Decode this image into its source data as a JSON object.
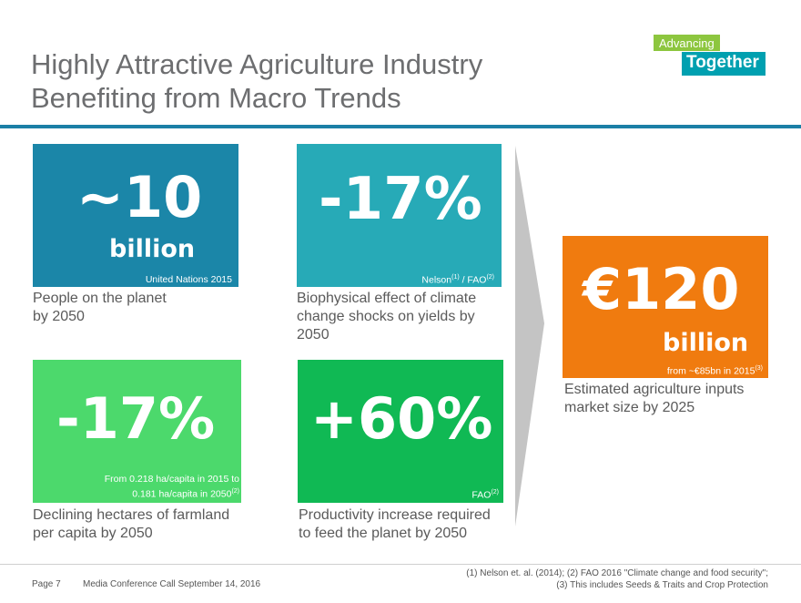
{
  "header": {
    "title_line1": "Highly Attractive Agriculture Industry",
    "title_line2": "Benefiting from Macro Trends"
  },
  "logo": {
    "line1": "Advancing",
    "line2": "Together"
  },
  "colors": {
    "rule": "#1b7fa6",
    "tile_population": "#1b86a8",
    "tile_climate": "#27aab7",
    "tile_farmland": "#4cd96c",
    "tile_productivity": "#10b954",
    "tile_market": "#f07b0f",
    "chevron": "#c4c4c4"
  },
  "tiles": {
    "population": {
      "value": "~10",
      "unit": "billion",
      "source": "United Nations 2015",
      "caption": [
        "People on the planet",
        "by 2050"
      ]
    },
    "climate": {
      "value": "-17%",
      "source": "Nelson",
      "source_sup1": "(1)",
      "source_mid": " / FAO",
      "source_sup2": "(2)",
      "caption": [
        "Biophysical effect of climate",
        "change shocks on yields by",
        "2050"
      ]
    },
    "farmland": {
      "value": "-17%",
      "source_line1": "From 0.218 ha/capita in 2015 to",
      "source_line2": "0.181 ha/capita in 2050",
      "source_sup": "(2)",
      "caption": [
        "Declining hectares of farmland",
        "per capita by 2050"
      ]
    },
    "productivity": {
      "value": "+60%",
      "source": "FAO",
      "source_sup": "(2)",
      "caption": [
        "Productivity increase required",
        "to feed the planet by 2050"
      ]
    },
    "market": {
      "value": "€120",
      "unit": "billion",
      "source": "from ~€85bn in 2015",
      "source_sup": "(3)",
      "caption": [
        "Estimated agriculture inputs",
        "market size by 2025"
      ]
    }
  },
  "footer": {
    "page": "Page 7",
    "event": "Media Conference Call  September 14, 2016",
    "note1": "(1) Nelson et. al. (2014); (2) FAO 2016 \"Climate change and food security\";",
    "note2": "(3) This includes Seeds & Traits and Crop Protection"
  }
}
